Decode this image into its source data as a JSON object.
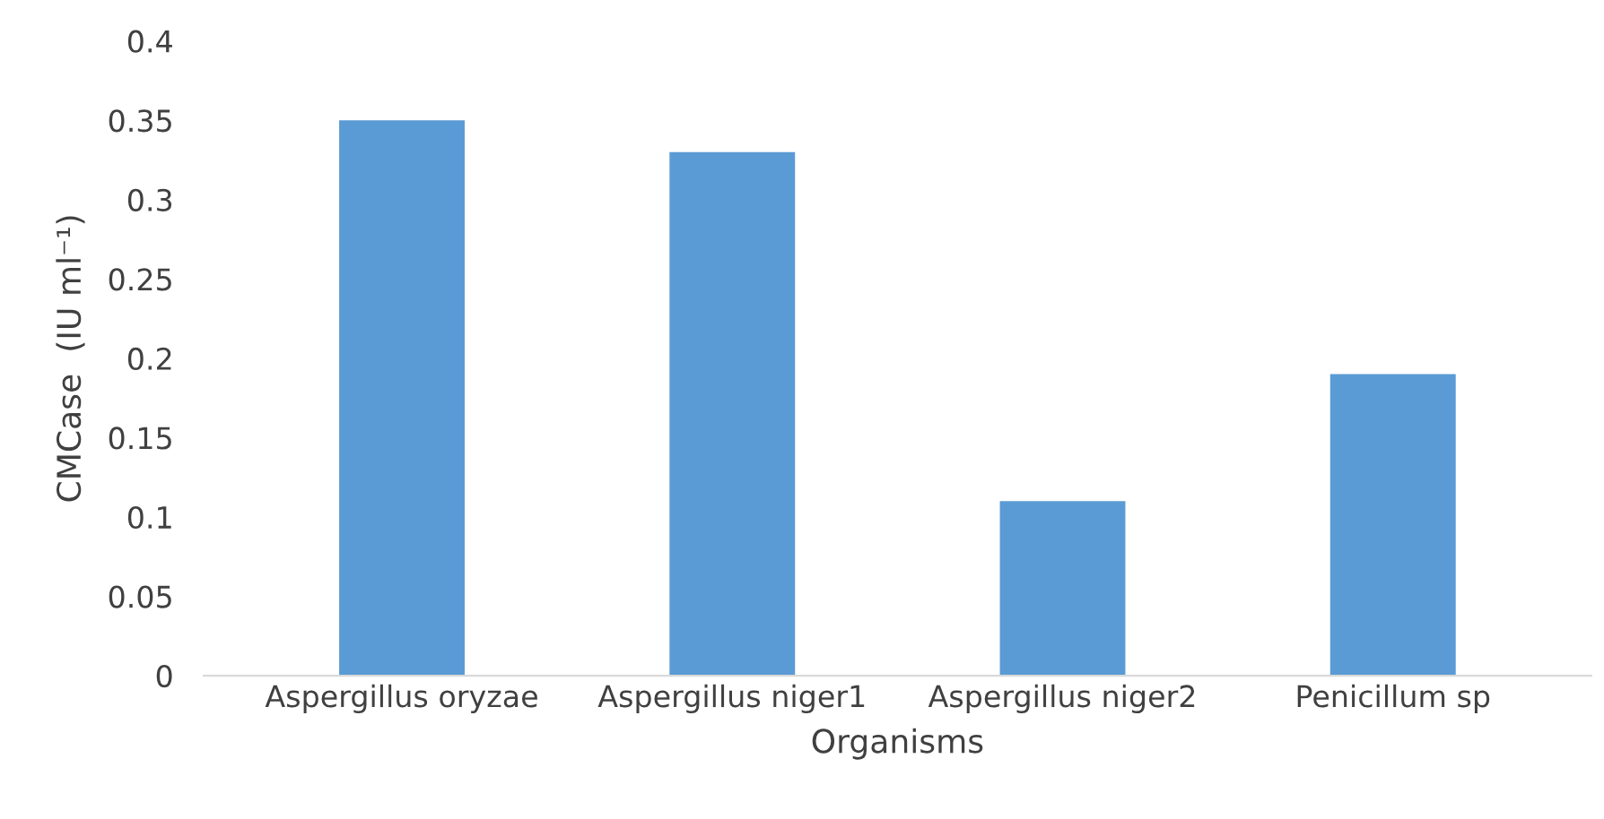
{
  "chart_data": {
    "type": "bar",
    "categories": [
      "Aspergillus oryzae",
      "Aspergillus niger1",
      "Aspergillus niger2",
      "Penicillum sp"
    ],
    "values": [
      0.35,
      0.33,
      0.11,
      0.19
    ],
    "color": "#5b9bd5",
    "xlabel": "Organisms",
    "ylabel": "CMCase  (IU ml⁻¹)",
    "ylim": [
      0,
      0.4
    ],
    "yticks": [
      {
        "value": 0,
        "label": "0"
      },
      0.05,
      0.1,
      0.15,
      0.2,
      0.25,
      0.3,
      0.35,
      0.4
    ],
    "grid": false,
    "legend": false
  }
}
